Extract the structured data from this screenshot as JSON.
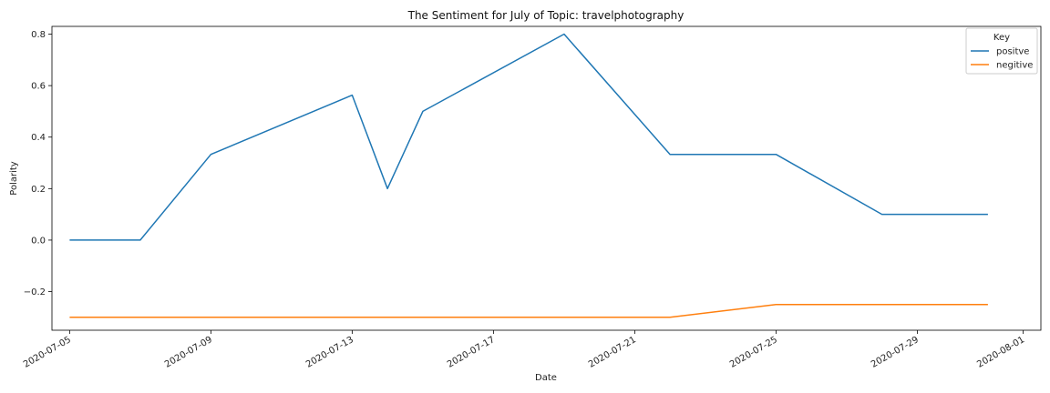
{
  "chart_data": {
    "type": "line",
    "title": "The Sentiment for July of Topic: travelphotography",
    "xlabel": "Date",
    "ylabel": "Polarity",
    "xlim": [
      "2020-07-05",
      "2020-08-01"
    ],
    "ylim": [
      -0.35,
      0.83
    ],
    "x_ticks": [
      "2020-07-05",
      "2020-07-09",
      "2020-07-13",
      "2020-07-17",
      "2020-07-21",
      "2020-07-25",
      "2020-07-29",
      "2020-08-01"
    ],
    "y_ticks": [
      -0.2,
      0.0,
      0.2,
      0.4,
      0.6,
      0.8
    ],
    "y_tick_labels": [
      "−0.2",
      "0.0",
      "0.2",
      "0.4",
      "0.6",
      "0.8"
    ],
    "legend": {
      "title": "Key",
      "position": "top-right"
    },
    "grid": false,
    "series": [
      {
        "name": "positve",
        "color": "#1f77b4",
        "points": [
          [
            "2020-07-05",
            0.0
          ],
          [
            "2020-07-07",
            0.0
          ],
          [
            "2020-07-09",
            0.333
          ],
          [
            "2020-07-13",
            0.563
          ],
          [
            "2020-07-14",
            0.2
          ],
          [
            "2020-07-15",
            0.5
          ],
          [
            "2020-07-19",
            0.8
          ],
          [
            "2020-07-22",
            0.333
          ],
          [
            "2020-07-25",
            0.333
          ],
          [
            "2020-07-28",
            0.1
          ],
          [
            "2020-07-31",
            0.1
          ]
        ]
      },
      {
        "name": "negitive",
        "color": "#ff7f0e",
        "points": [
          [
            "2020-07-05",
            -0.3
          ],
          [
            "2020-07-22",
            -0.3
          ],
          [
            "2020-07-25",
            -0.25
          ],
          [
            "2020-07-31",
            -0.25
          ]
        ]
      }
    ]
  }
}
